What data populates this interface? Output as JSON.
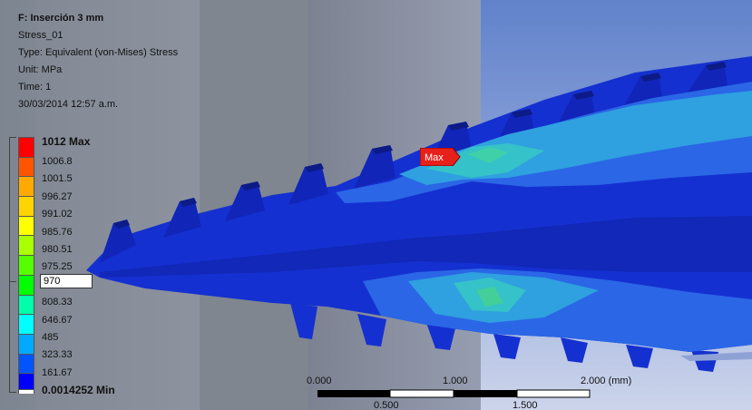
{
  "viewport": {
    "title": "F: Inserción 3 mm",
    "result_name": "Stress_01",
    "type": "Type: Equivalent (von-Mises) Stress",
    "unit": "Unit: MPa",
    "time": "Time: 1",
    "date": "30/03/2014 12:57 a.m."
  },
  "legend": {
    "max_label": "1012 Max",
    "labels": [
      "1006.8",
      "1001.5",
      "996.27",
      "991.02",
      "985.76",
      "980.51",
      "975.25",
      "808.33",
      "646.67",
      "485",
      "323.33",
      "161.67"
    ],
    "min_label": "0.0014252 Min",
    "control_value": "970",
    "colors": [
      "#ff0000",
      "#ff5500",
      "#ffaa00",
      "#ffd400",
      "#ffff00",
      "#aaff00",
      "#55ff00",
      "#00ff00",
      "#00ffaa",
      "#00ffff",
      "#00aaff",
      "#0055ff",
      "#0000ff"
    ]
  },
  "probe": {
    "label": "Max",
    "color": "#e8201a"
  },
  "scale": {
    "top_labels": [
      "0.000",
      "1.000",
      "2.000 (mm)"
    ],
    "bottom_labels": [
      "0.500",
      "1.500"
    ]
  }
}
